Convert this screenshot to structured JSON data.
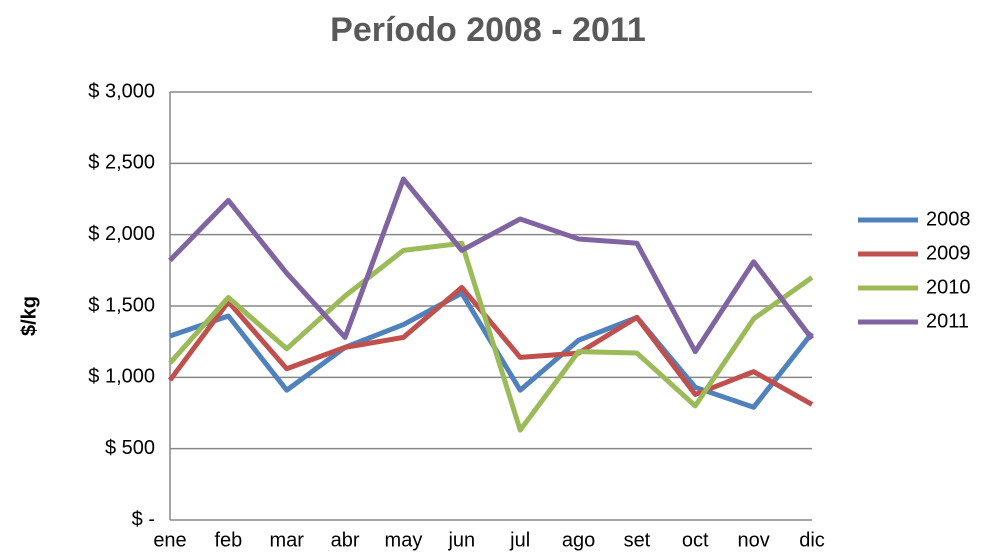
{
  "chart_data": {
    "type": "line",
    "title": "Período 2008 - 2011",
    "y_label": "$/kg",
    "categories": [
      "ene",
      "feb",
      "mar",
      "abr",
      "may",
      "jun",
      "jul",
      "ago",
      "set",
      "oct",
      "nov",
      "dic"
    ],
    "series": [
      {
        "name": "2008",
        "color": "#4f81bd",
        "values": [
          1290,
          1430,
          910,
          1210,
          1370,
          1590,
          910,
          1260,
          1420,
          930,
          790,
          1310
        ]
      },
      {
        "name": "2009",
        "color": "#c0504d",
        "values": [
          980,
          1530,
          1060,
          1210,
          1280,
          1630,
          1140,
          1170,
          1420,
          880,
          1040,
          810
        ]
      },
      {
        "name": "2010",
        "color": "#9bbb59",
        "values": [
          1100,
          1560,
          1200,
          1570,
          1890,
          1940,
          630,
          1180,
          1170,
          800,
          1410,
          1700
        ]
      },
      {
        "name": "2011",
        "color": "#8064a2",
        "values": [
          1820,
          2240,
          1730,
          1280,
          2390,
          1890,
          2110,
          1970,
          1940,
          1180,
          1810,
          1270
        ]
      }
    ],
    "ylim": [
      0,
      3000
    ],
    "yticks": [
      {
        "value": 0,
        "label": "$ -"
      },
      {
        "value": 500,
        "label": "$ 500"
      },
      {
        "value": 1000,
        "label": "$ 1,000"
      },
      {
        "value": 1500,
        "label": "$ 1,500"
      },
      {
        "value": 2000,
        "label": "$ 2,000"
      },
      {
        "value": 2500,
        "label": "$ 2,500"
      },
      {
        "value": 3000,
        "label": "$ 3,000"
      }
    ],
    "grid": true,
    "legend": "right"
  }
}
